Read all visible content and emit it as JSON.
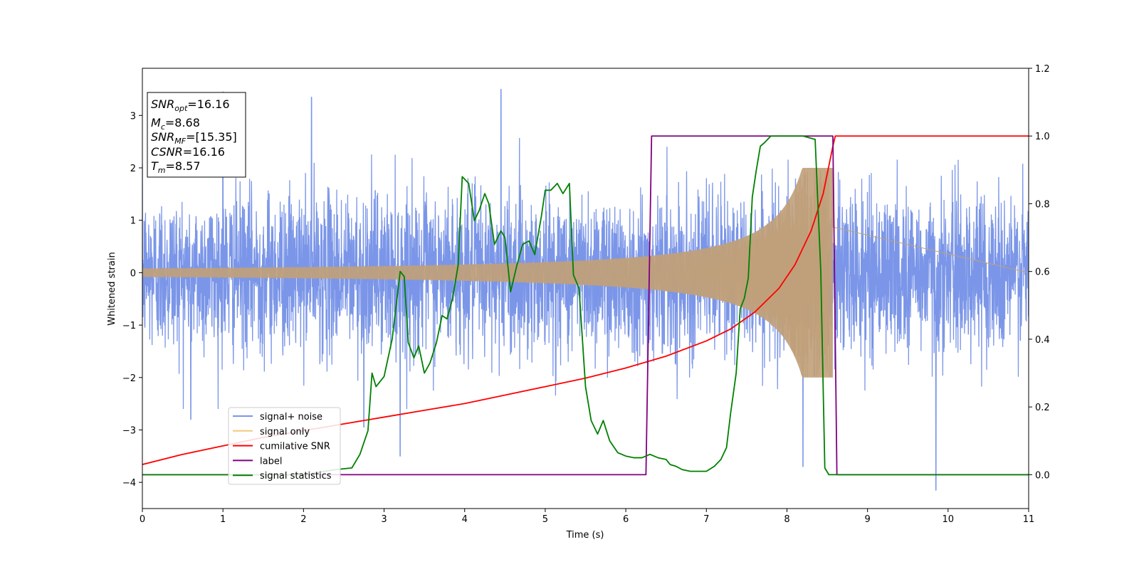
{
  "chart_data": {
    "type": "line",
    "title": "",
    "xlabel": "Time (s)",
    "ylabel": "Whitened strain",
    "xlim": [
      0,
      11
    ],
    "ylim_left": [
      -4.5,
      3.9
    ],
    "ylim_right": [
      -0.1,
      1.2
    ],
    "x_ticks": [
      0,
      1,
      2,
      3,
      4,
      5,
      6,
      7,
      8,
      9,
      10,
      11
    ],
    "y_ticks_left": [
      -4,
      -3,
      -2,
      -1,
      0,
      1,
      2,
      3
    ],
    "y_tick_labels_left": [
      "−4",
      "−3",
      "−2",
      "−1",
      "0",
      "1",
      "2",
      "3"
    ],
    "y_ticks_right": [
      0.0,
      0.2,
      0.4,
      0.6,
      0.8,
      1.0,
      1.2
    ],
    "y_tick_labels_right": [
      "0.0",
      "0.2",
      "0.4",
      "0.6",
      "0.8",
      "1.0",
      "1.2"
    ],
    "grid": false,
    "legend_position": "lower-left",
    "annotation": {
      "lines": [
        {
          "base": "SNR",
          "sub": "opt",
          "value": "=16.16"
        },
        {
          "base": "M",
          "sub": "c",
          "value": "=8.68"
        },
        {
          "base": "SNR",
          "sub": "MF",
          "value": "=[15.35]"
        },
        {
          "base": "CSNR",
          "sub": "",
          "value": "=16.16"
        },
        {
          "base": "T",
          "sub": "m",
          "value": "=8.57"
        }
      ]
    },
    "series": [
      {
        "name": "signal+ noise",
        "axis": "left",
        "color": "#7b96e8",
        "noise_std": 0.75,
        "peak_points": [
          [
            1.0,
            3.45
          ],
          [
            2.1,
            3.35
          ],
          [
            4.45,
            3.5
          ],
          [
            9.85,
            -4.15
          ],
          [
            3.2,
            -3.5
          ],
          [
            8.2,
            -3.7
          ],
          [
            2.75,
            -2.95
          ],
          [
            0.6,
            -2.8
          ]
        ]
      },
      {
        "name": "signal only",
        "axis": "left",
        "color": "#f5c77a",
        "overlap_color": "#c0a07a",
        "chirp_start_amplitude": 0.08,
        "chirp_end_time": 8.57,
        "chirp_peak_amplitude": 2.0
      },
      {
        "name": "cumilative SNR",
        "axis": "right",
        "color": "#ff0000",
        "x": [
          0.0,
          0.5,
          1.0,
          1.5,
          2.0,
          2.5,
          3.0,
          3.5,
          4.0,
          4.5,
          5.0,
          5.5,
          6.0,
          6.5,
          7.0,
          7.3,
          7.6,
          7.9,
          8.1,
          8.3,
          8.45,
          8.57,
          8.6,
          9.0,
          10.0,
          11.0
        ],
        "y": [
          0.03,
          0.06,
          0.085,
          0.11,
          0.13,
          0.15,
          0.17,
          0.19,
          0.21,
          0.235,
          0.26,
          0.285,
          0.315,
          0.35,
          0.395,
          0.43,
          0.48,
          0.55,
          0.62,
          0.72,
          0.83,
          0.97,
          1.0,
          1.0,
          1.0,
          1.0
        ]
      },
      {
        "name": "label",
        "axis": "right",
        "color": "#800080",
        "x": [
          0.0,
          6.25,
          6.32,
          8.57,
          8.62,
          11.0
        ],
        "y": [
          0.0,
          0.0,
          1.0,
          1.0,
          0.0,
          0.0
        ]
      },
      {
        "name": "signal statistics",
        "axis": "right",
        "color": "#008000",
        "x": [
          0.0,
          0.5,
          1.0,
          1.5,
          2.0,
          2.4,
          2.6,
          2.7,
          2.8,
          2.85,
          2.9,
          3.0,
          3.1,
          3.2,
          3.25,
          3.3,
          3.37,
          3.43,
          3.5,
          3.57,
          3.65,
          3.72,
          3.78,
          3.85,
          3.92,
          3.97,
          4.05,
          4.12,
          4.18,
          4.25,
          4.3,
          4.37,
          4.45,
          4.5,
          4.57,
          4.65,
          4.72,
          4.8,
          4.87,
          4.95,
          5.0,
          5.07,
          5.15,
          5.22,
          5.3,
          5.35,
          5.42,
          5.5,
          5.57,
          5.65,
          5.72,
          5.8,
          5.9,
          6.0,
          6.1,
          6.2,
          6.3,
          6.4,
          6.5,
          6.55,
          6.62,
          6.7,
          6.8,
          6.9,
          7.0,
          7.1,
          7.18,
          7.25,
          7.3,
          7.37,
          7.42,
          7.47,
          7.52,
          7.57,
          7.62,
          7.67,
          7.72,
          7.8,
          7.9,
          8.0,
          8.1,
          8.2,
          8.35,
          8.42,
          8.47,
          8.52,
          8.57,
          8.62,
          9.0,
          10.0,
          11.0
        ],
        "y": [
          0.0,
          0.0,
          0.0,
          0.0,
          0.0,
          0.015,
          0.02,
          0.06,
          0.13,
          0.3,
          0.26,
          0.29,
          0.4,
          0.6,
          0.585,
          0.39,
          0.345,
          0.38,
          0.3,
          0.33,
          0.39,
          0.47,
          0.46,
          0.52,
          0.62,
          0.88,
          0.86,
          0.75,
          0.78,
          0.83,
          0.8,
          0.68,
          0.72,
          0.7,
          0.54,
          0.62,
          0.68,
          0.69,
          0.65,
          0.76,
          0.84,
          0.84,
          0.86,
          0.83,
          0.86,
          0.59,
          0.55,
          0.26,
          0.16,
          0.12,
          0.16,
          0.1,
          0.065,
          0.055,
          0.05,
          0.05,
          0.06,
          0.05,
          0.045,
          0.03,
          0.025,
          0.015,
          0.01,
          0.01,
          0.01,
          0.025,
          0.045,
          0.08,
          0.18,
          0.3,
          0.49,
          0.52,
          0.58,
          0.82,
          0.9,
          0.97,
          0.98,
          1.0,
          1.0,
          1.0,
          1.0,
          1.0,
          0.99,
          0.6,
          0.02,
          0.0,
          0.0,
          0.0,
          0.0,
          0.0,
          0.0
        ]
      }
    ]
  }
}
